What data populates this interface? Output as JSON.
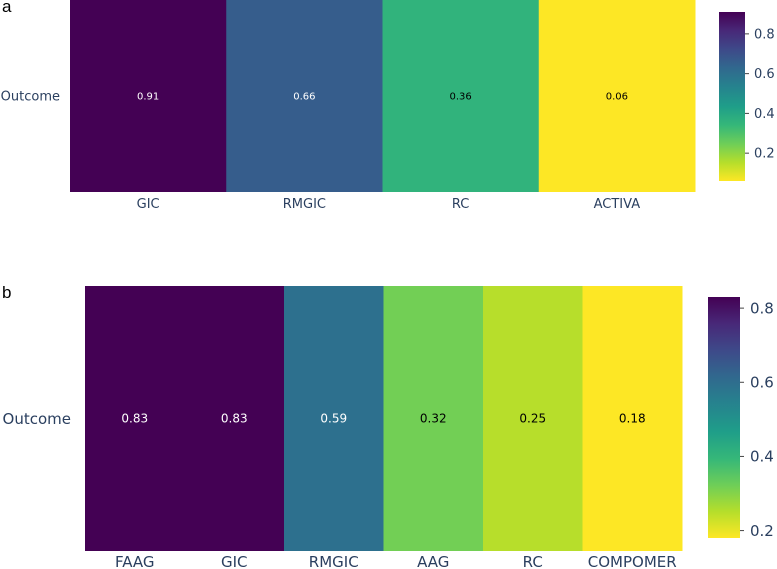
{
  "chart_data": [
    {
      "panel": "a",
      "type": "heatmap",
      "ylabel_row": "Outcome",
      "categories": [
        "GIC",
        "RMGIC",
        "RC",
        "ACTIVA"
      ],
      "values": [
        0.91,
        0.66,
        0.36,
        0.06
      ],
      "cell_labels": [
        "0.91",
        "0.66",
        "0.36",
        "0.06"
      ],
      "colorscale": "Viridis (reversed)",
      "colorbar": {
        "range": [
          0.06,
          0.91
        ],
        "ticks": [
          0.2,
          0.4,
          0.6,
          0.8
        ],
        "tick_labels": [
          "0.2",
          "0.4",
          "0.6",
          "0.8"
        ]
      }
    },
    {
      "panel": "b",
      "type": "heatmap",
      "ylabel_row": "Outcome",
      "categories": [
        "FAAG",
        "GIC",
        "RMGIC",
        "AAG",
        "RC",
        "COMPOMER"
      ],
      "values": [
        0.83,
        0.83,
        0.59,
        0.32,
        0.25,
        0.18
      ],
      "cell_labels": [
        "0.83",
        "0.83",
        "0.59",
        "0.32",
        "0.25",
        "0.18"
      ],
      "colorscale": "Viridis (reversed)",
      "colorbar": {
        "range": [
          0.18,
          0.83
        ],
        "ticks": [
          0.2,
          0.4,
          0.6,
          0.8
        ],
        "tick_labels": [
          "0.2",
          "0.4",
          "0.6",
          "0.8"
        ]
      }
    }
  ]
}
